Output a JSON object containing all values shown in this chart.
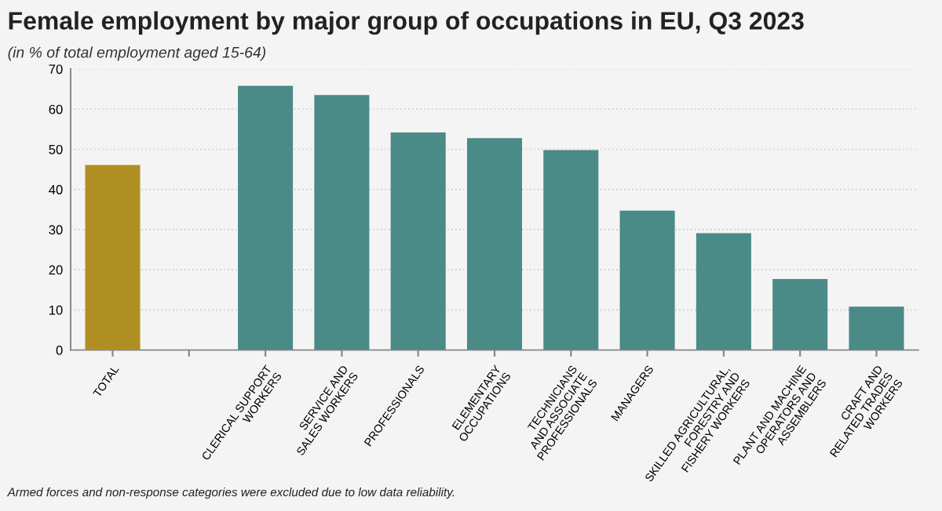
{
  "chart_data": {
    "type": "bar",
    "title": "Female employment by major group of occupations in EU, Q3 2023",
    "subtitle": "(in % of total employment aged 15-64)",
    "categories": [
      "TOTAL",
      null,
      "CLERICAL SUPPORT\nWORKERS",
      "SERVICE AND\nSALES WORKERS",
      "PROFESSIONALS",
      "ELEMENTARY\nOCCUPATIONS",
      "TECHNICIANS\nAND ASSOCIATE\nPROFESSIONALS",
      "MANAGERS",
      "SKILLED AGRICULTURAL,\nFORESTRY AND\nFISHERY WORKERS",
      "PLANT AND MACHINE\nOPERATORS AND\nASSEMBLERS",
      "CRAFT AND\nRELATED TRADES\nWORKERS"
    ],
    "values": [
      46.1,
      null,
      65.8,
      63.5,
      54.2,
      52.8,
      49.8,
      34.7,
      29.1,
      17.7,
      10.8
    ],
    "colors": [
      "#b08f22",
      null,
      "#4a8a87",
      "#4a8a87",
      "#4a8a87",
      "#4a8a87",
      "#4a8a87",
      "#4a8a87",
      "#4a8a87",
      "#4a8a87",
      "#4a8a87"
    ],
    "ylim": [
      0,
      70
    ],
    "yticks": [
      0,
      10,
      20,
      30,
      40,
      50,
      60,
      70
    ],
    "grid": "y",
    "annotations": [
      "Armed forces and non-response categories were excluded due to low data reliability."
    ]
  }
}
